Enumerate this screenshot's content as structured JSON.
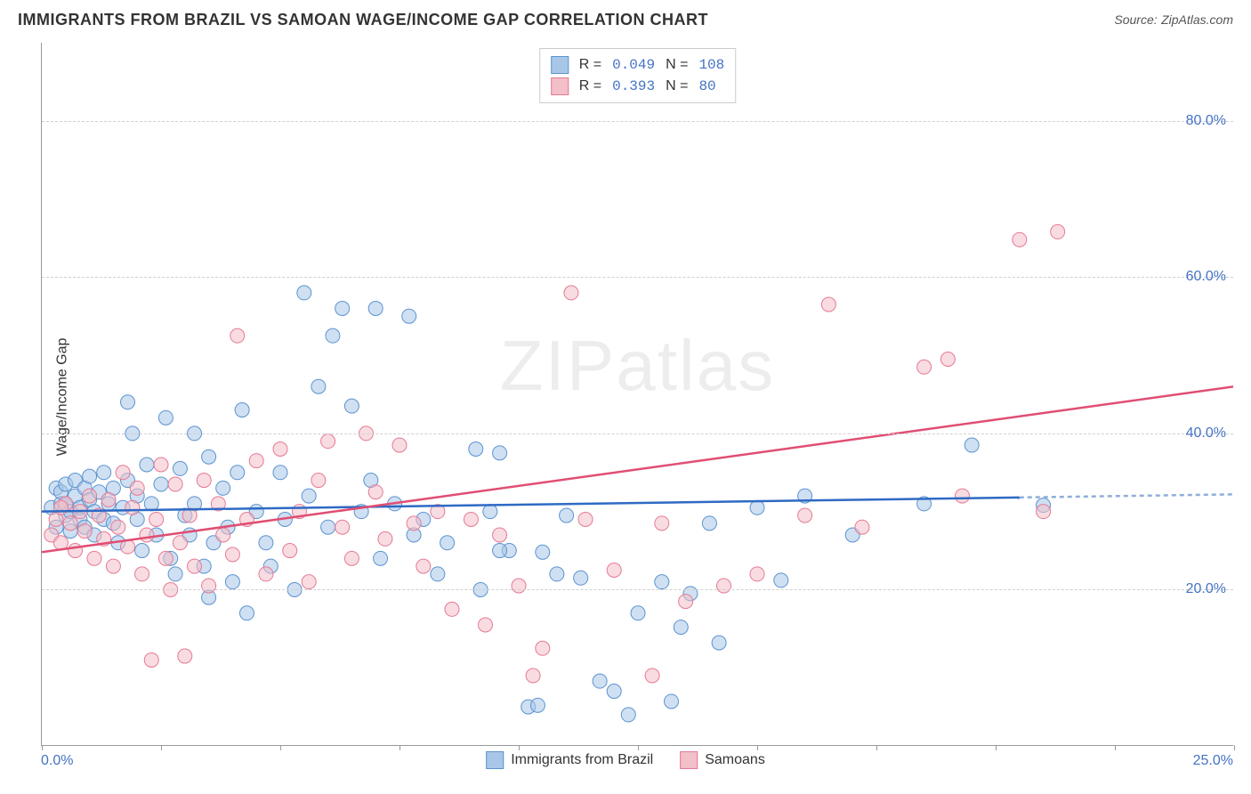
{
  "title": "IMMIGRANTS FROM BRAZIL VS SAMOAN WAGE/INCOME GAP CORRELATION CHART",
  "source_label": "Source:",
  "source_value": "ZipAtlas.com",
  "ylabel": "Wage/Income Gap",
  "watermark": "ZIPatlas",
  "chart": {
    "type": "scatter",
    "background_color": "#ffffff",
    "grid_color": "#d0d0d0",
    "axis_color": "#999999",
    "label_color": "#4472c4",
    "xlim": [
      0,
      25
    ],
    "ylim": [
      0,
      90
    ],
    "ytick_labels": [
      "20.0%",
      "40.0%",
      "60.0%",
      "80.0%"
    ],
    "ytick_values": [
      20,
      40,
      60,
      80
    ],
    "xtick_values": [
      0,
      2.5,
      5,
      7.5,
      10,
      12.5,
      15,
      17.5,
      20,
      22.5,
      25
    ],
    "x_start_label": "0.0%",
    "x_end_label": "25.0%",
    "markersize": 8,
    "marker_opacity": 0.55,
    "series": [
      {
        "name": "Immigrants from Brazil",
        "color_fill": "#a8c7e8",
        "color_stroke": "#5b93d0",
        "r_value": "0.049",
        "n_value": "108",
        "fit_line": {
          "x1": 0,
          "y1": 30.0,
          "x2": 20.5,
          "y2": 31.8,
          "color": "#2e6ac4",
          "width": 2.5
        },
        "fit_line_ext": {
          "x1": 20.5,
          "y1": 31.8,
          "x2": 25,
          "y2": 32.2,
          "color": "#8faed8",
          "dash": "5,4"
        },
        "points": [
          [
            0.2,
            30.5
          ],
          [
            0.3,
            33
          ],
          [
            0.3,
            28
          ],
          [
            0.4,
            31
          ],
          [
            0.4,
            32.5
          ],
          [
            0.5,
            29.5
          ],
          [
            0.5,
            31
          ],
          [
            0.5,
            33.5
          ],
          [
            0.6,
            30
          ],
          [
            0.6,
            27.5
          ],
          [
            0.7,
            32
          ],
          [
            0.7,
            34
          ],
          [
            0.8,
            29
          ],
          [
            0.8,
            30.5
          ],
          [
            0.9,
            33
          ],
          [
            0.9,
            28
          ],
          [
            1,
            31.5
          ],
          [
            1,
            34.5
          ],
          [
            1.1,
            30
          ],
          [
            1.1,
            27
          ],
          [
            1.2,
            32.5
          ],
          [
            1.3,
            29
          ],
          [
            1.3,
            35
          ],
          [
            1.4,
            31
          ],
          [
            1.5,
            28.5
          ],
          [
            1.5,
            33
          ],
          [
            1.6,
            26
          ],
          [
            1.7,
            30.5
          ],
          [
            1.8,
            34
          ],
          [
            1.8,
            44
          ],
          [
            1.9,
            40
          ],
          [
            2,
            29
          ],
          [
            2,
            32
          ],
          [
            2.1,
            25
          ],
          [
            2.2,
            36
          ],
          [
            2.3,
            31
          ],
          [
            2.4,
            27
          ],
          [
            2.5,
            33.5
          ],
          [
            2.6,
            42
          ],
          [
            2.7,
            24
          ],
          [
            2.8,
            22
          ],
          [
            2.9,
            35.5
          ],
          [
            3,
            29.5
          ],
          [
            3.1,
            27
          ],
          [
            3.2,
            31
          ],
          [
            3.2,
            40
          ],
          [
            3.4,
            23
          ],
          [
            3.5,
            37
          ],
          [
            3.5,
            19
          ],
          [
            3.6,
            26
          ],
          [
            3.8,
            33
          ],
          [
            3.9,
            28
          ],
          [
            4,
            21
          ],
          [
            4.1,
            35
          ],
          [
            4.2,
            43
          ],
          [
            4.3,
            17
          ],
          [
            4.5,
            30
          ],
          [
            4.7,
            26
          ],
          [
            4.8,
            23
          ],
          [
            5,
            35
          ],
          [
            5.1,
            29
          ],
          [
            5.3,
            20
          ],
          [
            5.5,
            58
          ],
          [
            5.6,
            32
          ],
          [
            5.8,
            46
          ],
          [
            6,
            28
          ],
          [
            6.1,
            52.5
          ],
          [
            6.3,
            56
          ],
          [
            6.5,
            43.5
          ],
          [
            6.7,
            30
          ],
          [
            6.9,
            34
          ],
          [
            7,
            56
          ],
          [
            7.1,
            24
          ],
          [
            7.4,
            31
          ],
          [
            7.7,
            55
          ],
          [
            7.8,
            27
          ],
          [
            8,
            29
          ],
          [
            8.3,
            22
          ],
          [
            8.5,
            26
          ],
          [
            9.1,
            38
          ],
          [
            9.2,
            20
          ],
          [
            9.4,
            30
          ],
          [
            9.6,
            37.5
          ],
          [
            9.8,
            25
          ],
          [
            10.2,
            5
          ],
          [
            10.4,
            5.2
          ],
          [
            10.5,
            24.8
          ],
          [
            10.8,
            22
          ],
          [
            11,
            29.5
          ],
          [
            11.3,
            21.5
          ],
          [
            11.7,
            8.3
          ],
          [
            12,
            7
          ],
          [
            12.3,
            4
          ],
          [
            12.5,
            17
          ],
          [
            13,
            21
          ],
          [
            13.2,
            5.7
          ],
          [
            13.6,
            19.5
          ],
          [
            14,
            28.5
          ],
          [
            14.2,
            13.2
          ],
          [
            15,
            30.5
          ],
          [
            15.5,
            21.2
          ],
          [
            16,
            32
          ],
          [
            17,
            27
          ],
          [
            18.5,
            31
          ],
          [
            19.5,
            38.5
          ],
          [
            21,
            30.8
          ],
          [
            13.4,
            15.2
          ],
          [
            9.6,
            25
          ]
        ]
      },
      {
        "name": "Samoans",
        "color_fill": "#f3bfc9",
        "color_stroke": "#e67a94",
        "r_value": "0.393",
        "n_value": "80",
        "fit_line": {
          "x1": 0,
          "y1": 24.8,
          "x2": 25,
          "y2": 46,
          "color": "#e04e73",
          "width": 2.5
        },
        "points": [
          [
            0.2,
            27
          ],
          [
            0.3,
            29
          ],
          [
            0.4,
            26
          ],
          [
            0.5,
            31
          ],
          [
            0.6,
            28.5
          ],
          [
            0.7,
            25
          ],
          [
            0.8,
            30
          ],
          [
            0.9,
            27.5
          ],
          [
            1,
            32
          ],
          [
            1.1,
            24
          ],
          [
            1.2,
            29.5
          ],
          [
            1.3,
            26.5
          ],
          [
            1.4,
            31.5
          ],
          [
            1.5,
            23
          ],
          [
            1.6,
            28
          ],
          [
            1.7,
            35
          ],
          [
            1.8,
            25.5
          ],
          [
            1.9,
            30.5
          ],
          [
            2,
            33
          ],
          [
            2.1,
            22
          ],
          [
            2.2,
            27
          ],
          [
            2.3,
            11
          ],
          [
            2.4,
            29
          ],
          [
            2.5,
            36
          ],
          [
            2.6,
            24
          ],
          [
            2.7,
            20
          ],
          [
            2.8,
            33.5
          ],
          [
            2.9,
            26
          ],
          [
            3,
            11.5
          ],
          [
            3.1,
            29.5
          ],
          [
            3.2,
            23
          ],
          [
            3.4,
            34
          ],
          [
            3.5,
            20.5
          ],
          [
            3.7,
            31
          ],
          [
            3.8,
            27
          ],
          [
            4,
            24.5
          ],
          [
            4.1,
            52.5
          ],
          [
            4.3,
            29
          ],
          [
            4.5,
            36.5
          ],
          [
            4.7,
            22
          ],
          [
            5,
            38
          ],
          [
            5.2,
            25
          ],
          [
            5.4,
            30
          ],
          [
            5.6,
            21
          ],
          [
            5.8,
            34
          ],
          [
            6,
            39
          ],
          [
            6.3,
            28
          ],
          [
            6.5,
            24
          ],
          [
            6.8,
            40
          ],
          [
            7,
            32.5
          ],
          [
            7.2,
            26.5
          ],
          [
            7.5,
            38.5
          ],
          [
            7.8,
            28.5
          ],
          [
            8,
            23
          ],
          [
            8.3,
            30
          ],
          [
            8.6,
            17.5
          ],
          [
            9,
            29
          ],
          [
            9.3,
            15.5
          ],
          [
            9.6,
            27
          ],
          [
            10,
            20.5
          ],
          [
            10.3,
            9
          ],
          [
            10.5,
            12.5
          ],
          [
            11.1,
            58
          ],
          [
            11.4,
            29
          ],
          [
            12,
            22.5
          ],
          [
            12.8,
            9
          ],
          [
            13,
            28.5
          ],
          [
            13.5,
            18.5
          ],
          [
            14.3,
            20.5
          ],
          [
            15,
            22
          ],
          [
            16,
            29.5
          ],
          [
            16.5,
            56.5
          ],
          [
            17.2,
            28
          ],
          [
            18.5,
            48.5
          ],
          [
            19,
            49.5
          ],
          [
            19.3,
            32
          ],
          [
            20.5,
            64.8
          ],
          [
            21.3,
            65.8
          ],
          [
            21,
            30
          ],
          [
            0.4,
            30.5
          ]
        ]
      }
    ],
    "legend_top": {
      "r_label": "R =",
      "n_label": "N ="
    },
    "legend_bottom_labels": [
      "Immigrants from Brazil",
      "Samoans"
    ]
  }
}
